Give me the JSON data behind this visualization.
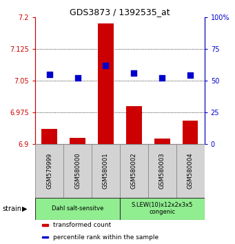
{
  "title": "GDS3873 / 1392535_at",
  "samples": [
    "GSM579999",
    "GSM580000",
    "GSM580001",
    "GSM580002",
    "GSM580003",
    "GSM580004"
  ],
  "bar_values": [
    6.935,
    6.915,
    7.185,
    6.99,
    6.912,
    6.955
  ],
  "bar_base": 6.9,
  "percentile_values": [
    55,
    52,
    62,
    56,
    52,
    54
  ],
  "ylim_left": [
    6.9,
    7.2
  ],
  "ylim_right": [
    0,
    100
  ],
  "yticks_left": [
    6.9,
    6.975,
    7.05,
    7.125,
    7.2
  ],
  "yticks_right": [
    0,
    25,
    50,
    75,
    100
  ],
  "ytick_labels_left": [
    "6.9",
    "6.975",
    "7.05",
    "7.125",
    "7.2"
  ],
  "ytick_labels_right": [
    "0",
    "25",
    "50",
    "75",
    "100%"
  ],
  "bar_color": "#cc0000",
  "dot_color": "#0000cc",
  "groups": [
    {
      "label": "Dahl salt-sensitve",
      "span": [
        0,
        3
      ],
      "color": "#90ee90"
    },
    {
      "label": "S.LEW(10)x12x2x3x5\ncongenic",
      "span": [
        3,
        6
      ],
      "color": "#90ee90"
    }
  ],
  "legend_items": [
    {
      "color": "#cc0000",
      "label": "transformed count"
    },
    {
      "color": "#0000cc",
      "label": "percentile rank within the sample"
    }
  ],
  "strain_label": "strain",
  "left_axis_color": "#cc0000",
  "right_axis_color": "#0000cc",
  "bar_width": 0.55,
  "dot_size": 35,
  "sample_box_color": "#d3d3d3",
  "spine_color": "#888888"
}
